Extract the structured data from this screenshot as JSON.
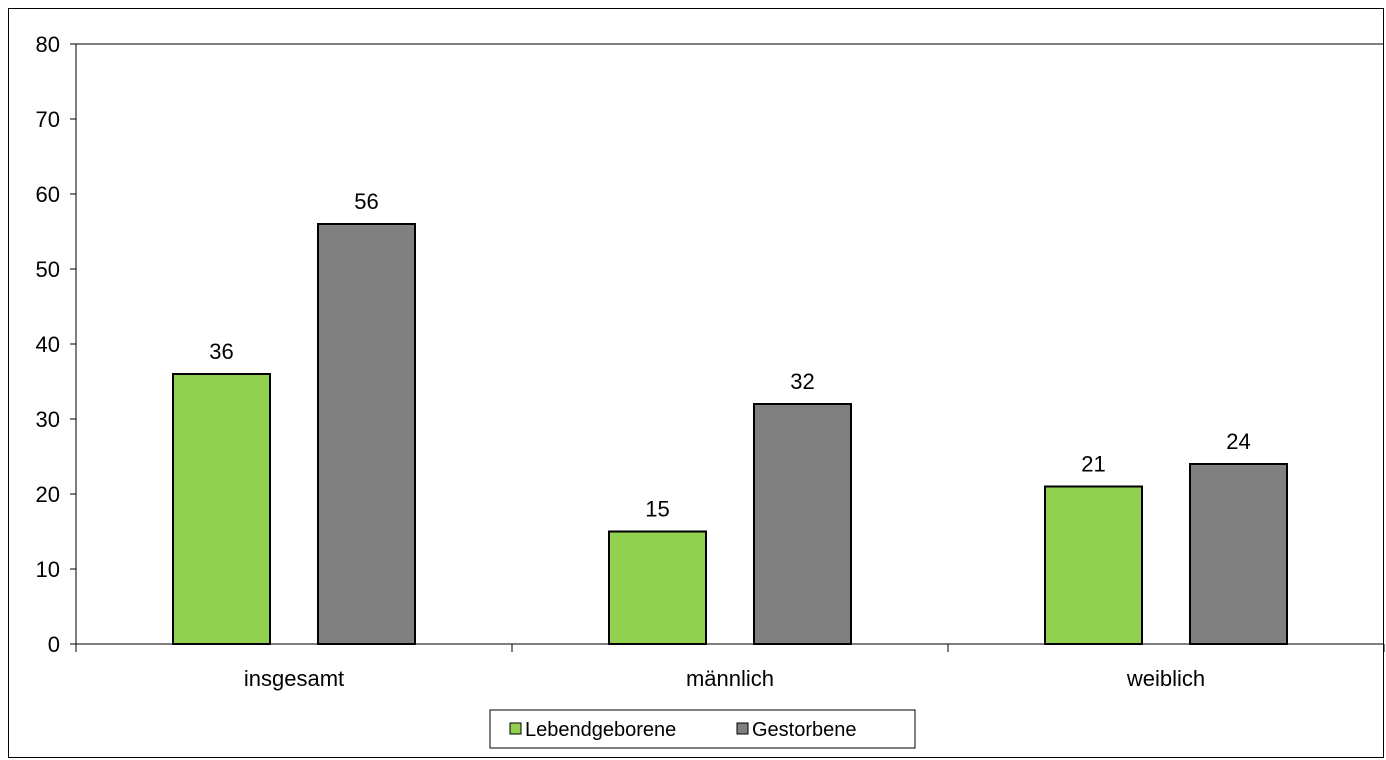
{
  "chart_data": {
    "type": "bar",
    "title": "",
    "xlabel": "",
    "ylabel": "",
    "categories": [
      "insgesamt",
      "männlich",
      "weiblich"
    ],
    "series": [
      {
        "name": "Lebendgeborene",
        "color": "#92D050",
        "values": [
          36,
          15,
          21
        ]
      },
      {
        "name": "Gestorbene",
        "color": "#808080",
        "values": [
          56,
          32,
          24
        ]
      }
    ],
    "ylim": [
      0,
      80
    ],
    "yticks": [
      0,
      10,
      20,
      30,
      40,
      50,
      60,
      70,
      80
    ],
    "grid": false,
    "data_labels": true,
    "legend_position": "bottom"
  }
}
